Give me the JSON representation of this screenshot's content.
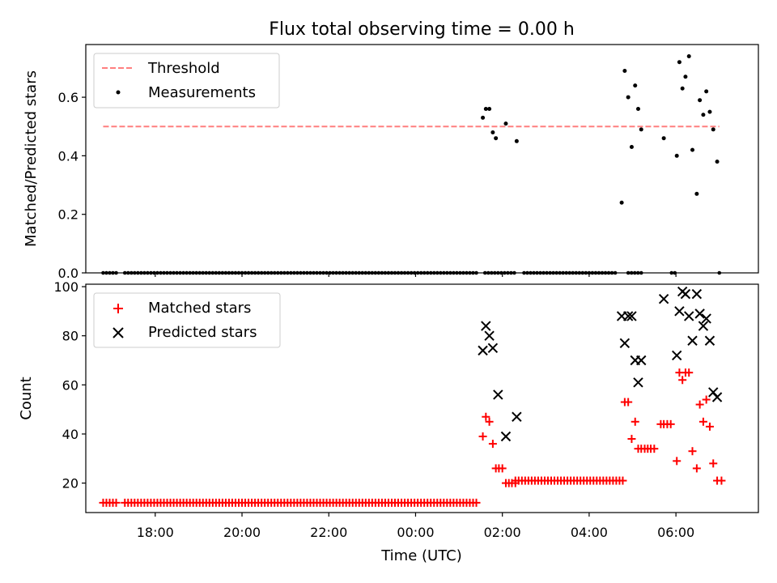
{
  "title": "Flux total observing time = 0.00 h",
  "chart_data": [
    {
      "type": "scatter",
      "ylabel": "Matched/Predicted stars",
      "ylim": [
        0,
        0.78
      ],
      "yticks": [
        "0.0",
        "0.2",
        "0.4",
        "0.6"
      ],
      "xlim": [
        16.4,
        31.9
      ],
      "xtick_labels": [
        "18:00",
        "20:00",
        "22:00",
        "00:00",
        "02:00",
        "04:00",
        "06:00"
      ],
      "legend_placement": "upper-left",
      "series": [
        {
          "name": "Threshold",
          "style": "dashed-line",
          "color": "#ff7f7f",
          "x": [
            16.8,
            31.0
          ],
          "values": [
            0.5,
            0.5
          ]
        },
        {
          "name": "Measurements",
          "style": "dot",
          "color": "#000000",
          "zero_runs": [
            [
              16.8,
              17.1
            ],
            [
              17.3,
              25.4
            ],
            [
              25.6,
              26.3
            ],
            [
              26.5,
              28.6
            ],
            [
              28.9,
              29.2
            ],
            [
              29.9,
              30.0
            ],
            [
              31.0,
              31.0
            ]
          ],
          "points": [
            [
              25.55,
              0.53
            ],
            [
              25.62,
              0.56
            ],
            [
              25.7,
              0.56
            ],
            [
              25.78,
              0.48
            ],
            [
              25.85,
              0.46
            ],
            [
              26.08,
              0.51
            ],
            [
              26.33,
              0.45
            ],
            [
              28.75,
              0.24
            ],
            [
              28.82,
              0.69
            ],
            [
              28.9,
              0.6
            ],
            [
              28.98,
              0.43
            ],
            [
              29.06,
              0.64
            ],
            [
              29.13,
              0.56
            ],
            [
              29.2,
              0.49
            ],
            [
              29.72,
              0.46
            ],
            [
              30.02,
              0.4
            ],
            [
              30.08,
              0.72
            ],
            [
              30.15,
              0.63
            ],
            [
              30.22,
              0.67
            ],
            [
              30.3,
              0.74
            ],
            [
              30.38,
              0.42
            ],
            [
              30.48,
              0.27
            ],
            [
              30.55,
              0.59
            ],
            [
              30.63,
              0.54
            ],
            [
              30.7,
              0.62
            ],
            [
              30.78,
              0.55
            ],
            [
              30.86,
              0.49
            ],
            [
              30.95,
              0.38
            ]
          ]
        }
      ]
    },
    {
      "type": "scatter",
      "xlabel": "Time (UTC)",
      "ylabel": "Count",
      "ylim": [
        8,
        101
      ],
      "yticks": [
        "20",
        "40",
        "60",
        "80",
        "100"
      ],
      "xlim": [
        16.4,
        31.9
      ],
      "xtick_labels": [
        "18:00",
        "20:00",
        "22:00",
        "00:00",
        "02:00",
        "04:00",
        "06:00"
      ],
      "legend_placement": "upper-left",
      "series": [
        {
          "name": "Matched stars",
          "marker": "+",
          "color": "#ff0000",
          "runs": [
            {
              "x": [
                16.8,
                17.1
              ],
              "value": 12
            },
            {
              "x": [
                17.3,
                25.4
              ],
              "value": 12
            },
            {
              "x": [
                26.3,
                28.8
              ],
              "value": 21
            }
          ],
          "points": [
            [
              25.55,
              39
            ],
            [
              25.62,
              47
            ],
            [
              25.7,
              45
            ],
            [
              25.78,
              36
            ],
            [
              25.85,
              26
            ],
            [
              25.92,
              26
            ],
            [
              26.0,
              26
            ],
            [
              26.08,
              20
            ],
            [
              26.15,
              20
            ],
            [
              26.22,
              20
            ],
            [
              26.3,
              20
            ],
            [
              28.82,
              53
            ],
            [
              28.9,
              53
            ],
            [
              28.98,
              38
            ],
            [
              29.06,
              45
            ],
            [
              29.13,
              34
            ],
            [
              29.2,
              34
            ],
            [
              29.28,
              34
            ],
            [
              29.35,
              34
            ],
            [
              29.42,
              34
            ],
            [
              29.5,
              34
            ],
            [
              29.65,
              44
            ],
            [
              29.72,
              44
            ],
            [
              29.8,
              44
            ],
            [
              29.88,
              44
            ],
            [
              30.02,
              29
            ],
            [
              30.08,
              65
            ],
            [
              30.15,
              62
            ],
            [
              30.22,
              65
            ],
            [
              30.3,
              65
            ],
            [
              30.38,
              33
            ],
            [
              30.48,
              26
            ],
            [
              30.55,
              52
            ],
            [
              30.63,
              45
            ],
            [
              30.7,
              54
            ],
            [
              30.78,
              43
            ],
            [
              30.86,
              28
            ],
            [
              30.95,
              21
            ],
            [
              31.05,
              21
            ]
          ]
        },
        {
          "name": "Predicted stars",
          "marker": "x",
          "color": "#000000",
          "points": [
            [
              25.55,
              74
            ],
            [
              25.62,
              84
            ],
            [
              25.7,
              80
            ],
            [
              25.78,
              75
            ],
            [
              25.9,
              56
            ],
            [
              26.08,
              39
            ],
            [
              26.33,
              47
            ],
            [
              28.75,
              88
            ],
            [
              28.82,
              77
            ],
            [
              28.9,
              88
            ],
            [
              28.98,
              88
            ],
            [
              29.06,
              70
            ],
            [
              29.13,
              61
            ],
            [
              29.2,
              70
            ],
            [
              29.72,
              95
            ],
            [
              30.02,
              72
            ],
            [
              30.08,
              90
            ],
            [
              30.15,
              98
            ],
            [
              30.22,
              97
            ],
            [
              30.3,
              88
            ],
            [
              30.38,
              78
            ],
            [
              30.48,
              97
            ],
            [
              30.55,
              89
            ],
            [
              30.63,
              84
            ],
            [
              30.7,
              87
            ],
            [
              30.78,
              78
            ],
            [
              30.86,
              57
            ],
            [
              30.95,
              55
            ]
          ]
        }
      ]
    }
  ]
}
